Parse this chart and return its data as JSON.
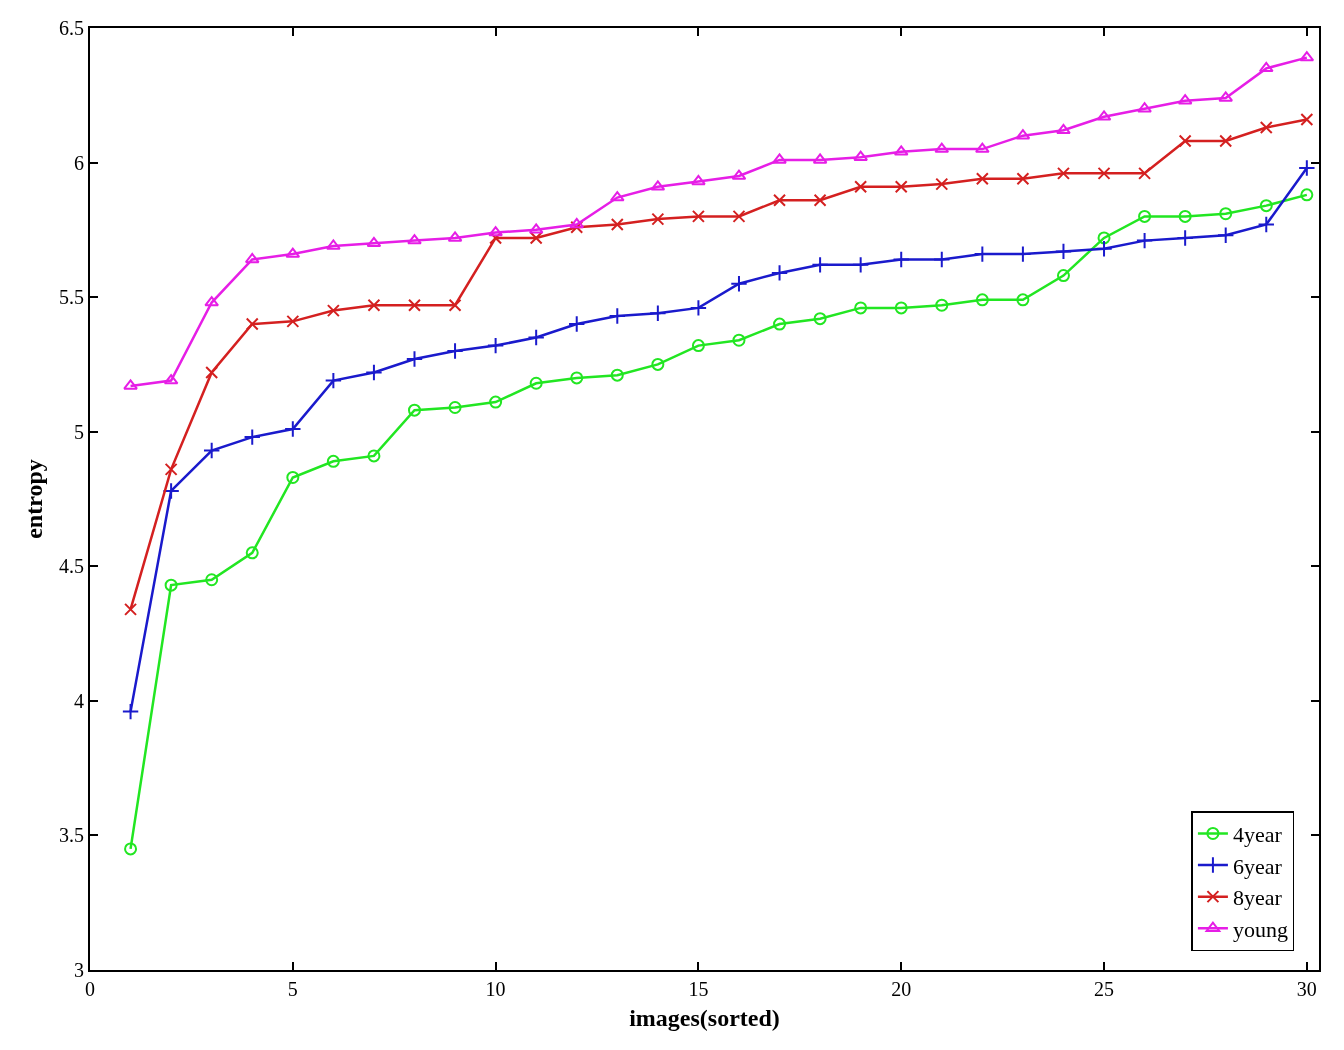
{
  "chart_data": {
    "type": "line",
    "xlabel": "images(sorted)",
    "ylabel": "entropy",
    "x": [
      1,
      2,
      3,
      4,
      5,
      6,
      7,
      8,
      9,
      10,
      11,
      12,
      13,
      14,
      15,
      16,
      17,
      18,
      19,
      20,
      21,
      22,
      23,
      24,
      25,
      26,
      27,
      28,
      29,
      30
    ],
    "series": [
      {
        "name": "4year",
        "color": "#22e622",
        "marker": "circle",
        "values": [
          3.45,
          4.43,
          4.45,
          4.55,
          4.83,
          4.89,
          4.91,
          5.08,
          5.09,
          5.11,
          5.18,
          5.2,
          5.21,
          5.25,
          5.32,
          5.34,
          5.4,
          5.42,
          5.46,
          5.46,
          5.47,
          5.49,
          5.49,
          5.58,
          5.72,
          5.8,
          5.8,
          5.81,
          5.84,
          5.88
        ]
      },
      {
        "name": "6year",
        "color": "#1a1acc",
        "marker": "cross",
        "values": [
          3.96,
          4.78,
          4.93,
          4.98,
          5.01,
          5.19,
          5.22,
          5.27,
          5.3,
          5.32,
          5.35,
          5.4,
          5.43,
          5.44,
          5.46,
          5.55,
          5.59,
          5.62,
          5.62,
          5.64,
          5.64,
          5.66,
          5.66,
          5.67,
          5.68,
          5.71,
          5.72,
          5.73,
          5.77,
          5.98
        ]
      },
      {
        "name": "8year",
        "color": "#d42020",
        "marker": "x",
        "values": [
          4.34,
          4.86,
          5.22,
          5.4,
          5.41,
          5.45,
          5.47,
          5.47,
          5.47,
          5.72,
          5.72,
          5.76,
          5.77,
          5.79,
          5.8,
          5.8,
          5.86,
          5.86,
          5.91,
          5.91,
          5.92,
          5.94,
          5.94,
          5.96,
          5.96,
          5.96,
          6.08,
          6.08,
          6.13,
          6.16
        ]
      },
      {
        "name": "young",
        "color": "#e61ee6",
        "marker": "triangle",
        "values": [
          5.17,
          5.19,
          5.48,
          5.64,
          5.66,
          5.69,
          5.7,
          5.71,
          5.72,
          5.74,
          5.75,
          5.77,
          5.87,
          5.91,
          5.93,
          5.95,
          6.01,
          6.01,
          6.02,
          6.04,
          6.05,
          6.05,
          6.1,
          6.12,
          6.17,
          6.2,
          6.23,
          6.24,
          6.35,
          6.39
        ]
      }
    ],
    "xlim": [
      0,
      30.3
    ],
    "xticks": [
      0,
      5,
      10,
      15,
      20,
      25,
      30
    ],
    "ylim": [
      3,
      6.5
    ],
    "yticks": [
      3,
      3.5,
      4,
      4.5,
      5,
      5.5,
      6,
      6.5
    ],
    "legend": "bottom right",
    "line_style": "solid"
  }
}
